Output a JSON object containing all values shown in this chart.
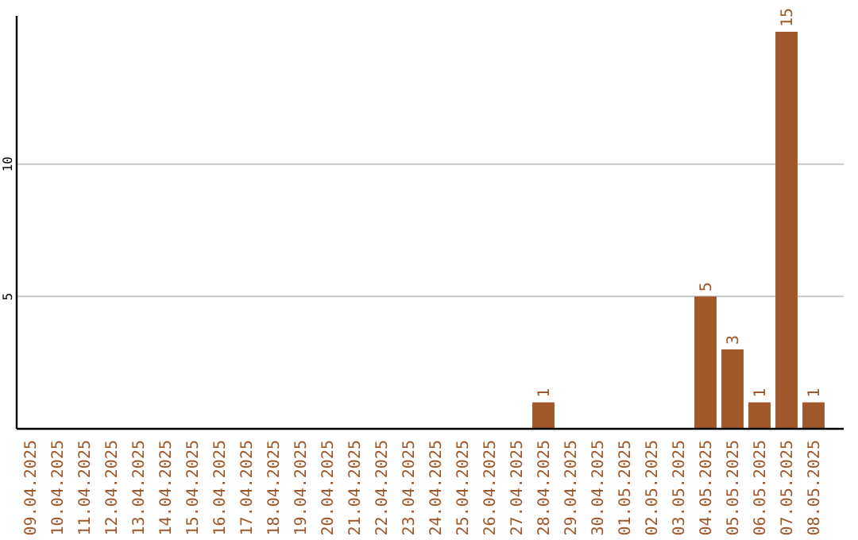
{
  "chart_data": {
    "type": "bar",
    "categories": [
      "09.04.2025",
      "10.04.2025",
      "11.04.2025",
      "12.04.2025",
      "13.04.2025",
      "14.04.2025",
      "15.04.2025",
      "16.04.2025",
      "17.04.2025",
      "18.04.2025",
      "19.04.2025",
      "20.04.2025",
      "21.04.2025",
      "22.04.2025",
      "23.04.2025",
      "24.04.2025",
      "25.04.2025",
      "26.04.2025",
      "27.04.2025",
      "28.04.2025",
      "29.04.2025",
      "30.04.2025",
      "01.05.2025",
      "02.05.2025",
      "03.05.2025",
      "04.05.2025",
      "05.05.2025",
      "06.05.2025",
      "07.05.2025",
      "08.05.2025"
    ],
    "values": [
      0,
      0,
      0,
      0,
      0,
      0,
      0,
      0,
      0,
      0,
      0,
      0,
      0,
      0,
      0,
      0,
      0,
      0,
      0,
      1,
      0,
      0,
      0,
      0,
      0,
      5,
      3,
      1,
      15,
      1
    ],
    "value_labels": [
      null,
      null,
      null,
      null,
      null,
      null,
      null,
      null,
      null,
      null,
      null,
      null,
      null,
      null,
      null,
      null,
      null,
      null,
      null,
      "1",
      null,
      null,
      null,
      null,
      null,
      "5",
      "3",
      "1",
      "15",
      "1"
    ],
    "color": "#a0582a",
    "ylim": [
      0,
      15.6
    ],
    "yticks": [
      5,
      10
    ],
    "grid": "y"
  }
}
